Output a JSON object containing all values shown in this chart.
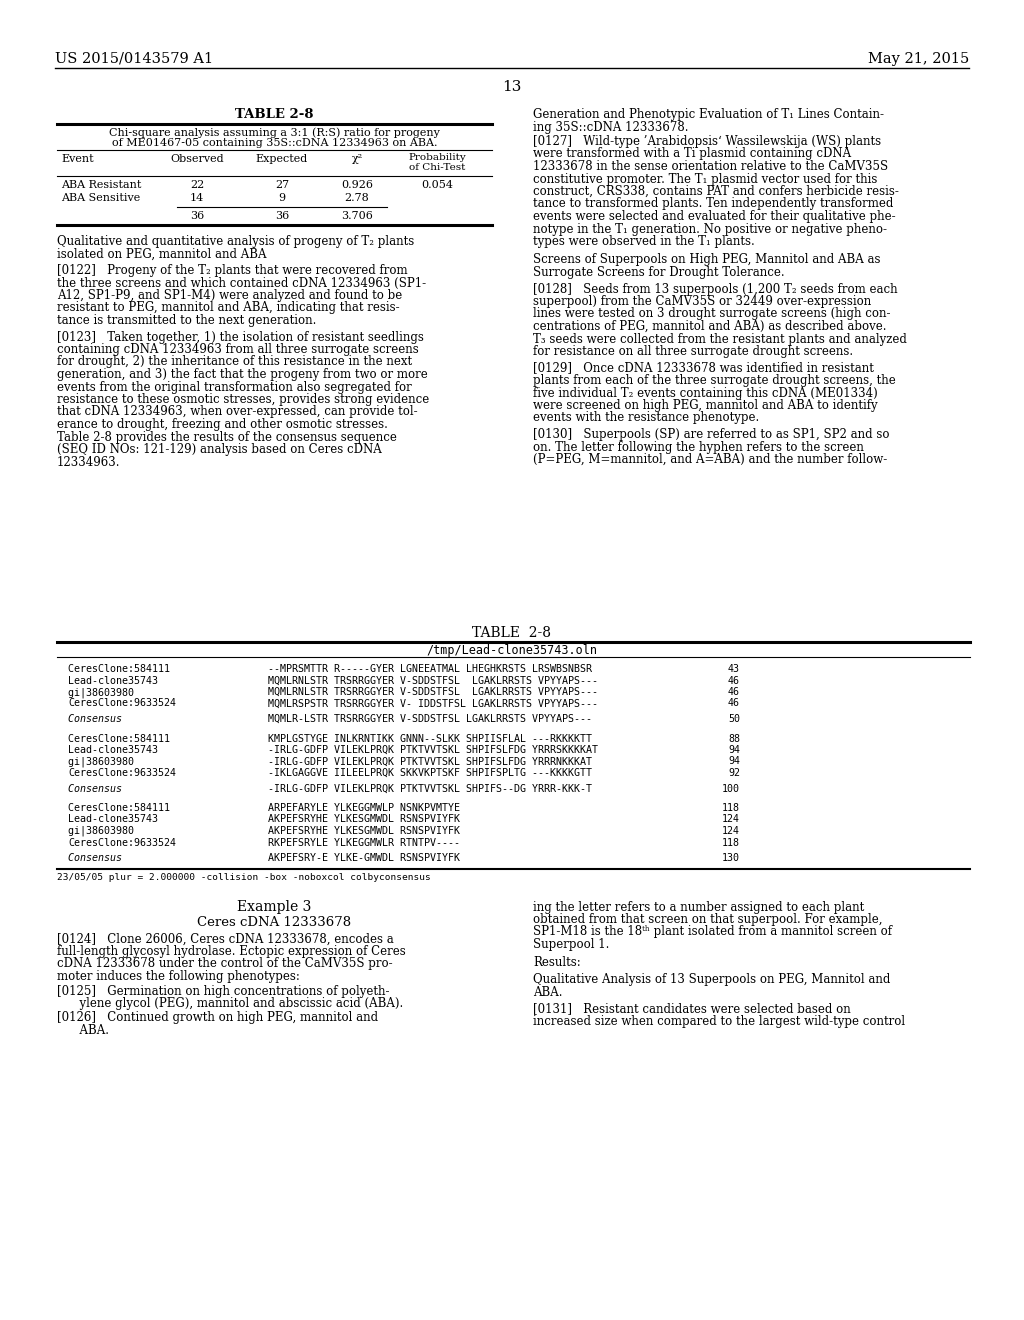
{
  "page_header_left": "US 2015/0143579 A1",
  "page_header_right": "May 21, 2015",
  "page_number": "13",
  "background_color": "#ffffff",
  "table1_title": "TABLE 2-8",
  "table1_sub1": "Chi-square analysis assuming a 3:1 (R:S) ratio for progeny",
  "table1_sub2": "of ME01467-05 containing 35S::cDNA 12334963 on ABA.",
  "seq_block1": [
    [
      "CeresClone:584111 ",
      "--MPRSMTTR R-----GYER LGNEEATMAL LHEGHKRSTS LRSWBSNBSR",
      "43"
    ],
    [
      "Lead-clone35743   ",
      "MQMLRNLSTR TRSRRGGYER V-SDDSTFSL  LGAKLRRSTS VPYYAPS---",
      "46"
    ],
    [
      "gi|38603980       ",
      "MQMLRNLSTR TRSRRGGYER V-SDDSTFSL  LGAKLRRSTS VPYYAPS---",
      "46"
    ],
    [
      "CeresClone:9633524",
      "MQMLRSPSTR TRSRRGGYER V- IDDSTFSL LGAKLRRSTS VPYYAPS---",
      "46"
    ]
  ],
  "consensus1": [
    "Consensus         ",
    "MQMLR-LSTR TRSRRGGYER V-SDDSTFSL LGAKLRRSTS VPYYAPS---",
    "50"
  ],
  "seq_block2": [
    [
      "CeresClone:584111 ",
      "KMPLGSTYGE INLKRNTIKK GNNN--SLKK SHPIISFLAL ---RKKKKTT",
      "88"
    ],
    [
      "Lead-clone35743   ",
      "-IRLG-GDFP VILEKLPRQK PTKTVVTSKL SHPIFSLFDG YRRRSKKKKAT",
      "94"
    ],
    [
      "gi|38603980       ",
      "-IRLG-GDFP VILEKLPRQK PTKTVVTSKL SHPIFSLFDG YRRRNKKKAT ",
      "94"
    ],
    [
      "CeresClone:9633524",
      "-IKLGAGGVE IILEELPRQK SKKVKPTSKF SHPIFSPLTG ---KKKKGTT ",
      "92"
    ]
  ],
  "consensus2": [
    "Consensus         ",
    "-IRLG-GDFP VILEKLPRQK PTKTVVTSKL SHPIFS--DG YRRR-KKK-T",
    "100"
  ],
  "seq_block3": [
    [
      "CeresClone:584111 ",
      "ARPEFARYLE YLKEGGMWLP NSNKPVMTYE                       ",
      "118"
    ],
    [
      "Lead-clone35743   ",
      "AKPEFSRYHE YLKESGMWDL RSNSPVIYFK                        ",
      "124"
    ],
    [
      "gi|38603980       ",
      "AKPEFSRYHE YLKESGMWDL RSNSPVIYFK                        ",
      "124"
    ],
    [
      "CeresClone:9633524",
      "RKPEFSRYLE YLKEGGMWLR RTNTPV----                        ",
      "118"
    ]
  ],
  "consensus3": [
    "Consensus         ",
    "AKPEFSRY-E YLKE-GMWDL RSNSPVIYFK                        ",
    "130"
  ],
  "table2_footer": "23/05/05 plur = 2.000000 -collision -box -noboxcol colbyconsensus"
}
